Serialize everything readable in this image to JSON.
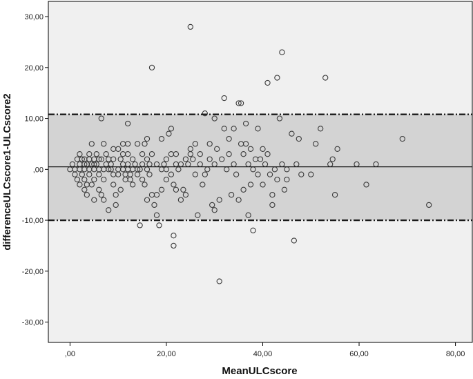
{
  "chart_data": {
    "type": "scatter",
    "title": "",
    "xlabel": "MeanULCscore",
    "ylabel": "differenceULCscore1-ULCscore2",
    "xlim": [
      -4.5,
      83.5
    ],
    "ylim": [
      -34,
      33
    ],
    "x_ticks": [
      0,
      20,
      40,
      60,
      80
    ],
    "x_tick_labels": [
      ",00",
      "20,00",
      "40,00",
      "60,00",
      "80,00"
    ],
    "y_ticks": [
      30,
      20,
      10,
      0,
      -10,
      -20,
      -30
    ],
    "y_tick_labels": [
      "30,00",
      "20,00",
      "10,00",
      ",00",
      "-10,00",
      "-20,00",
      "-30,00"
    ],
    "grid": false,
    "legend": "none",
    "colors": {
      "plot_background": "#f0f0f0",
      "agreement_band": "#d3d3d3",
      "points": "#3a3a3a",
      "reference_lines": "#1a1a1a"
    },
    "reference_lines": {
      "mean_difference": 0.5,
      "upper_limit": 10.8,
      "lower_limit": -10.0
    },
    "points": [
      [
        0,
        0
      ],
      [
        0.5,
        1
      ],
      [
        1,
        0
      ],
      [
        1,
        -1
      ],
      [
        1.5,
        2
      ],
      [
        1.5,
        -2
      ],
      [
        2,
        1
      ],
      [
        2,
        0
      ],
      [
        2,
        3
      ],
      [
        2,
        -3
      ],
      [
        2.5,
        2
      ],
      [
        2.5,
        -1
      ],
      [
        3,
        0
      ],
      [
        3,
        1
      ],
      [
        3,
        -2
      ],
      [
        3,
        2
      ],
      [
        3,
        -4
      ],
      [
        3.5,
        -3
      ],
      [
        3.5,
        1
      ],
      [
        3.5,
        -5
      ],
      [
        4,
        0
      ],
      [
        4,
        2
      ],
      [
        4,
        3
      ],
      [
        4,
        -1
      ],
      [
        4.5,
        1
      ],
      [
        4.5,
        5
      ],
      [
        4.5,
        -3
      ],
      [
        5,
        0
      ],
      [
        5,
        1
      ],
      [
        5,
        2
      ],
      [
        5,
        -2
      ],
      [
        5,
        -6
      ],
      [
        5.5,
        3
      ],
      [
        5.5,
        1
      ],
      [
        6,
        0
      ],
      [
        6,
        -1
      ],
      [
        6,
        2
      ],
      [
        6,
        -4
      ],
      [
        6.5,
        2
      ],
      [
        6.5,
        -5
      ],
      [
        6.5,
        10
      ],
      [
        7,
        5
      ],
      [
        7,
        0
      ],
      [
        7,
        -2
      ],
      [
        7,
        -6
      ],
      [
        7.5,
        1
      ],
      [
        7.5,
        3
      ],
      [
        8,
        2
      ],
      [
        8,
        0
      ],
      [
        8,
        -8
      ],
      [
        8.5,
        0
      ],
      [
        8.5,
        1
      ],
      [
        9,
        4
      ],
      [
        9,
        -1
      ],
      [
        9,
        2
      ],
      [
        9,
        -3
      ],
      [
        9.5,
        -5
      ],
      [
        9.5,
        -7
      ],
      [
        10,
        0
      ],
      [
        10,
        4
      ],
      [
        10,
        -1
      ],
      [
        10.5,
        2
      ],
      [
        10.5,
        -4
      ],
      [
        11,
        0
      ],
      [
        11,
        1
      ],
      [
        11,
        3
      ],
      [
        11,
        5
      ],
      [
        11.5,
        -1
      ],
      [
        11.5,
        -2
      ],
      [
        12,
        0
      ],
      [
        12,
        1
      ],
      [
        12,
        3
      ],
      [
        12,
        5
      ],
      [
        12,
        9
      ],
      [
        12.5,
        -1
      ],
      [
        12.5,
        -2
      ],
      [
        13,
        0
      ],
      [
        13,
        2
      ],
      [
        13,
        -3
      ],
      [
        13.5,
        1
      ],
      [
        14,
        0
      ],
      [
        14,
        -1
      ],
      [
        14,
        5
      ],
      [
        14.5,
        0
      ],
      [
        14.5,
        -11
      ],
      [
        15,
        1
      ],
      [
        15,
        3
      ],
      [
        15,
        -2
      ],
      [
        15.5,
        -3
      ],
      [
        15.5,
        5
      ],
      [
        16,
        2
      ],
      [
        16,
        0
      ],
      [
        16,
        6
      ],
      [
        16,
        -6
      ],
      [
        16.5,
        1
      ],
      [
        16.5,
        -1
      ],
      [
        17,
        -5
      ],
      [
        17,
        3
      ],
      [
        17,
        20
      ],
      [
        17.5,
        -7
      ],
      [
        18,
        -5
      ],
      [
        18,
        1
      ],
      [
        18,
        -9
      ],
      [
        18.5,
        -11
      ],
      [
        19,
        0
      ],
      [
        19,
        6
      ],
      [
        19,
        -4
      ],
      [
        19.5,
        1
      ],
      [
        20,
        2
      ],
      [
        20,
        -2
      ],
      [
        20,
        0
      ],
      [
        20.5,
        7
      ],
      [
        21,
        3
      ],
      [
        21,
        8
      ],
      [
        21,
        -1
      ],
      [
        21.5,
        -3
      ],
      [
        21.5,
        -13
      ],
      [
        21.5,
        -15
      ],
      [
        22,
        1
      ],
      [
        22,
        3
      ],
      [
        22,
        -4
      ],
      [
        22.5,
        0
      ],
      [
        23,
        1
      ],
      [
        23,
        -6
      ],
      [
        23.5,
        -4
      ],
      [
        24,
        2
      ],
      [
        24,
        -5
      ],
      [
        24.5,
        1
      ],
      [
        25,
        3
      ],
      [
        25,
        28
      ],
      [
        25,
        4
      ],
      [
        25.5,
        2
      ],
      [
        26,
        -1
      ],
      [
        26,
        5
      ],
      [
        26.5,
        -9
      ],
      [
        27,
        1
      ],
      [
        27,
        3
      ],
      [
        27.5,
        -3
      ],
      [
        28,
        11
      ],
      [
        28,
        -1
      ],
      [
        28.5,
        0
      ],
      [
        29,
        2
      ],
      [
        29,
        5
      ],
      [
        29.5,
        -7
      ],
      [
        30,
        1
      ],
      [
        30,
        10
      ],
      [
        30,
        -8
      ],
      [
        30.5,
        4
      ],
      [
        31,
        -6
      ],
      [
        31,
        -22
      ],
      [
        31.5,
        2
      ],
      [
        32,
        14
      ],
      [
        32,
        8
      ],
      [
        32.5,
        0
      ],
      [
        33,
        6
      ],
      [
        33,
        3
      ],
      [
        33.5,
        -5
      ],
      [
        34,
        1
      ],
      [
        34,
        8
      ],
      [
        34.5,
        -1
      ],
      [
        35,
        13
      ],
      [
        35,
        -6
      ],
      [
        35.5,
        5
      ],
      [
        35.5,
        13
      ],
      [
        36,
        3
      ],
      [
        36,
        -4
      ],
      [
        36.5,
        9
      ],
      [
        36.5,
        5
      ],
      [
        37,
        1
      ],
      [
        37,
        -9
      ],
      [
        37.5,
        4
      ],
      [
        37.5,
        -3
      ],
      [
        38,
        0
      ],
      [
        38,
        -12
      ],
      [
        38.5,
        2
      ],
      [
        39,
        8
      ],
      [
        39,
        -1
      ],
      [
        39.5,
        2
      ],
      [
        40,
        4
      ],
      [
        40,
        -3
      ],
      [
        40.5,
        1
      ],
      [
        41,
        17
      ],
      [
        41,
        3
      ],
      [
        41.5,
        -1
      ],
      [
        42,
        -7
      ],
      [
        42,
        -5
      ],
      [
        42.5,
        0
      ],
      [
        43,
        18
      ],
      [
        43,
        -2
      ],
      [
        43.5,
        10
      ],
      [
        44,
        1
      ],
      [
        44,
        23
      ],
      [
        44.5,
        -4
      ],
      [
        45,
        -2
      ],
      [
        45,
        0
      ],
      [
        46,
        7
      ],
      [
        46.5,
        -14
      ],
      [
        47,
        1
      ],
      [
        47.5,
        6
      ],
      [
        48,
        -1
      ],
      [
        50,
        -1
      ],
      [
        51,
        5
      ],
      [
        52,
        8
      ],
      [
        53,
        18
      ],
      [
        54,
        1
      ],
      [
        54.5,
        2
      ],
      [
        55,
        -5
      ],
      [
        55.5,
        4
      ],
      [
        59.5,
        1
      ],
      [
        61.5,
        -3
      ],
      [
        63.5,
        1
      ],
      [
        69,
        6
      ],
      [
        74.5,
        -7
      ]
    ]
  }
}
